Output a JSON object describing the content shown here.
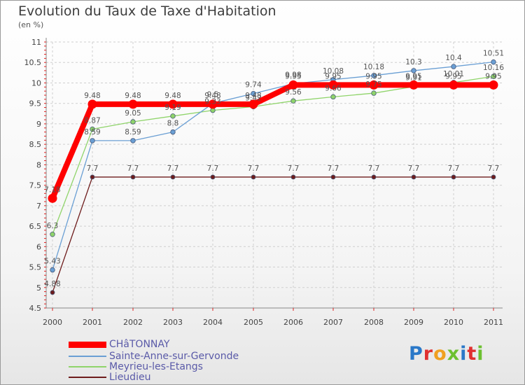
{
  "header": {
    "title": "Evolution du Taux de Taxe d'Habitation",
    "unit": "(en %)"
  },
  "chart_data": {
    "type": "line",
    "title": "Evolution du Taux de Taxe d'Habitation",
    "ylabel": "(en %)",
    "xlabel": "",
    "ylim": [
      4.5,
      11
    ],
    "y_ticks": [
      "4.5",
      "5",
      "5.5",
      "6",
      "6.5",
      "7",
      "7.5",
      "8",
      "8.5",
      "9",
      "9.5",
      "10",
      "10.5",
      "11"
    ],
    "x": [
      "2000",
      "2001",
      "2002",
      "2003",
      "2004",
      "2005",
      "2006",
      "2007",
      "2008",
      "2009",
      "2010",
      "2011"
    ],
    "grid": true,
    "legend_position": "bottom-left",
    "series": [
      {
        "name": "Lieudieu",
        "color": "#6e1c1c",
        "values": [
          4.88,
          7.7,
          7.7,
          7.7,
          7.7,
          7.7,
          7.7,
          7.7,
          7.7,
          7.7,
          7.7,
          7.7
        ],
        "labels": [
          "4.88",
          "7.7",
          "7.7",
          "7.7",
          "7.7",
          "7.7",
          "7.7",
          "7.7",
          "7.7",
          "7.7",
          "7.7",
          "7.7"
        ]
      },
      {
        "name": "Meyrieu-les-Etangs",
        "color": "#8fd46a",
        "values": [
          6.3,
          8.87,
          9.05,
          9.19,
          9.33,
          9.42,
          9.56,
          9.66,
          9.75,
          9.91,
          10.01,
          10.16
        ],
        "labels": [
          "6.3",
          "8.87",
          "9.05",
          "9.19",
          "9.33",
          "9.42",
          "9.56",
          "9.66",
          "9.75",
          "9.91",
          "10.01",
          "10.16"
        ]
      },
      {
        "name": "Sainte-Anne-sur-Gervonde",
        "color": "#6a9fd4",
        "values": [
          5.43,
          8.59,
          8.59,
          8.8,
          9.5,
          9.74,
          9.98,
          10.08,
          10.18,
          10.3,
          10.4,
          10.51
        ],
        "labels": [
          "5.43",
          "8.59",
          "8.59",
          "8.8",
          "9.5",
          "9.74",
          "9.98",
          "10.08",
          "10.18",
          "10.3",
          "10.4",
          "10.51"
        ]
      },
      {
        "name": "CHâTONNAY",
        "color": "#ff0000",
        "values": [
          7.18,
          9.48,
          9.48,
          9.48,
          9.48,
          9.48,
          9.95,
          9.95,
          9.95,
          9.95,
          9.95,
          9.95
        ],
        "labels": [
          "7.18",
          "9.48",
          "9.48",
          "9.48",
          "9.48",
          "9.48",
          "9.95",
          "9.95",
          "9.95",
          "9.95",
          "9.95",
          "9.95"
        ]
      }
    ],
    "legend": [
      {
        "name": "CHâTONNAY",
        "color": "#ff0000"
      },
      {
        "name": "Sainte-Anne-sur-Gervonde",
        "color": "#6a9fd4"
      },
      {
        "name": "Meyrieu-les-Etangs",
        "color": "#8fd46a"
      },
      {
        "name": "Lieudieu",
        "color": "#6e1c1c"
      }
    ]
  },
  "branding": {
    "logo_text": "Proxiti",
    "letter_colors": [
      "#2a78c8",
      "#e03030",
      "#f0a020",
      "#6cc030",
      "#2a78c8",
      "#e03030",
      "#6cc030"
    ]
  }
}
